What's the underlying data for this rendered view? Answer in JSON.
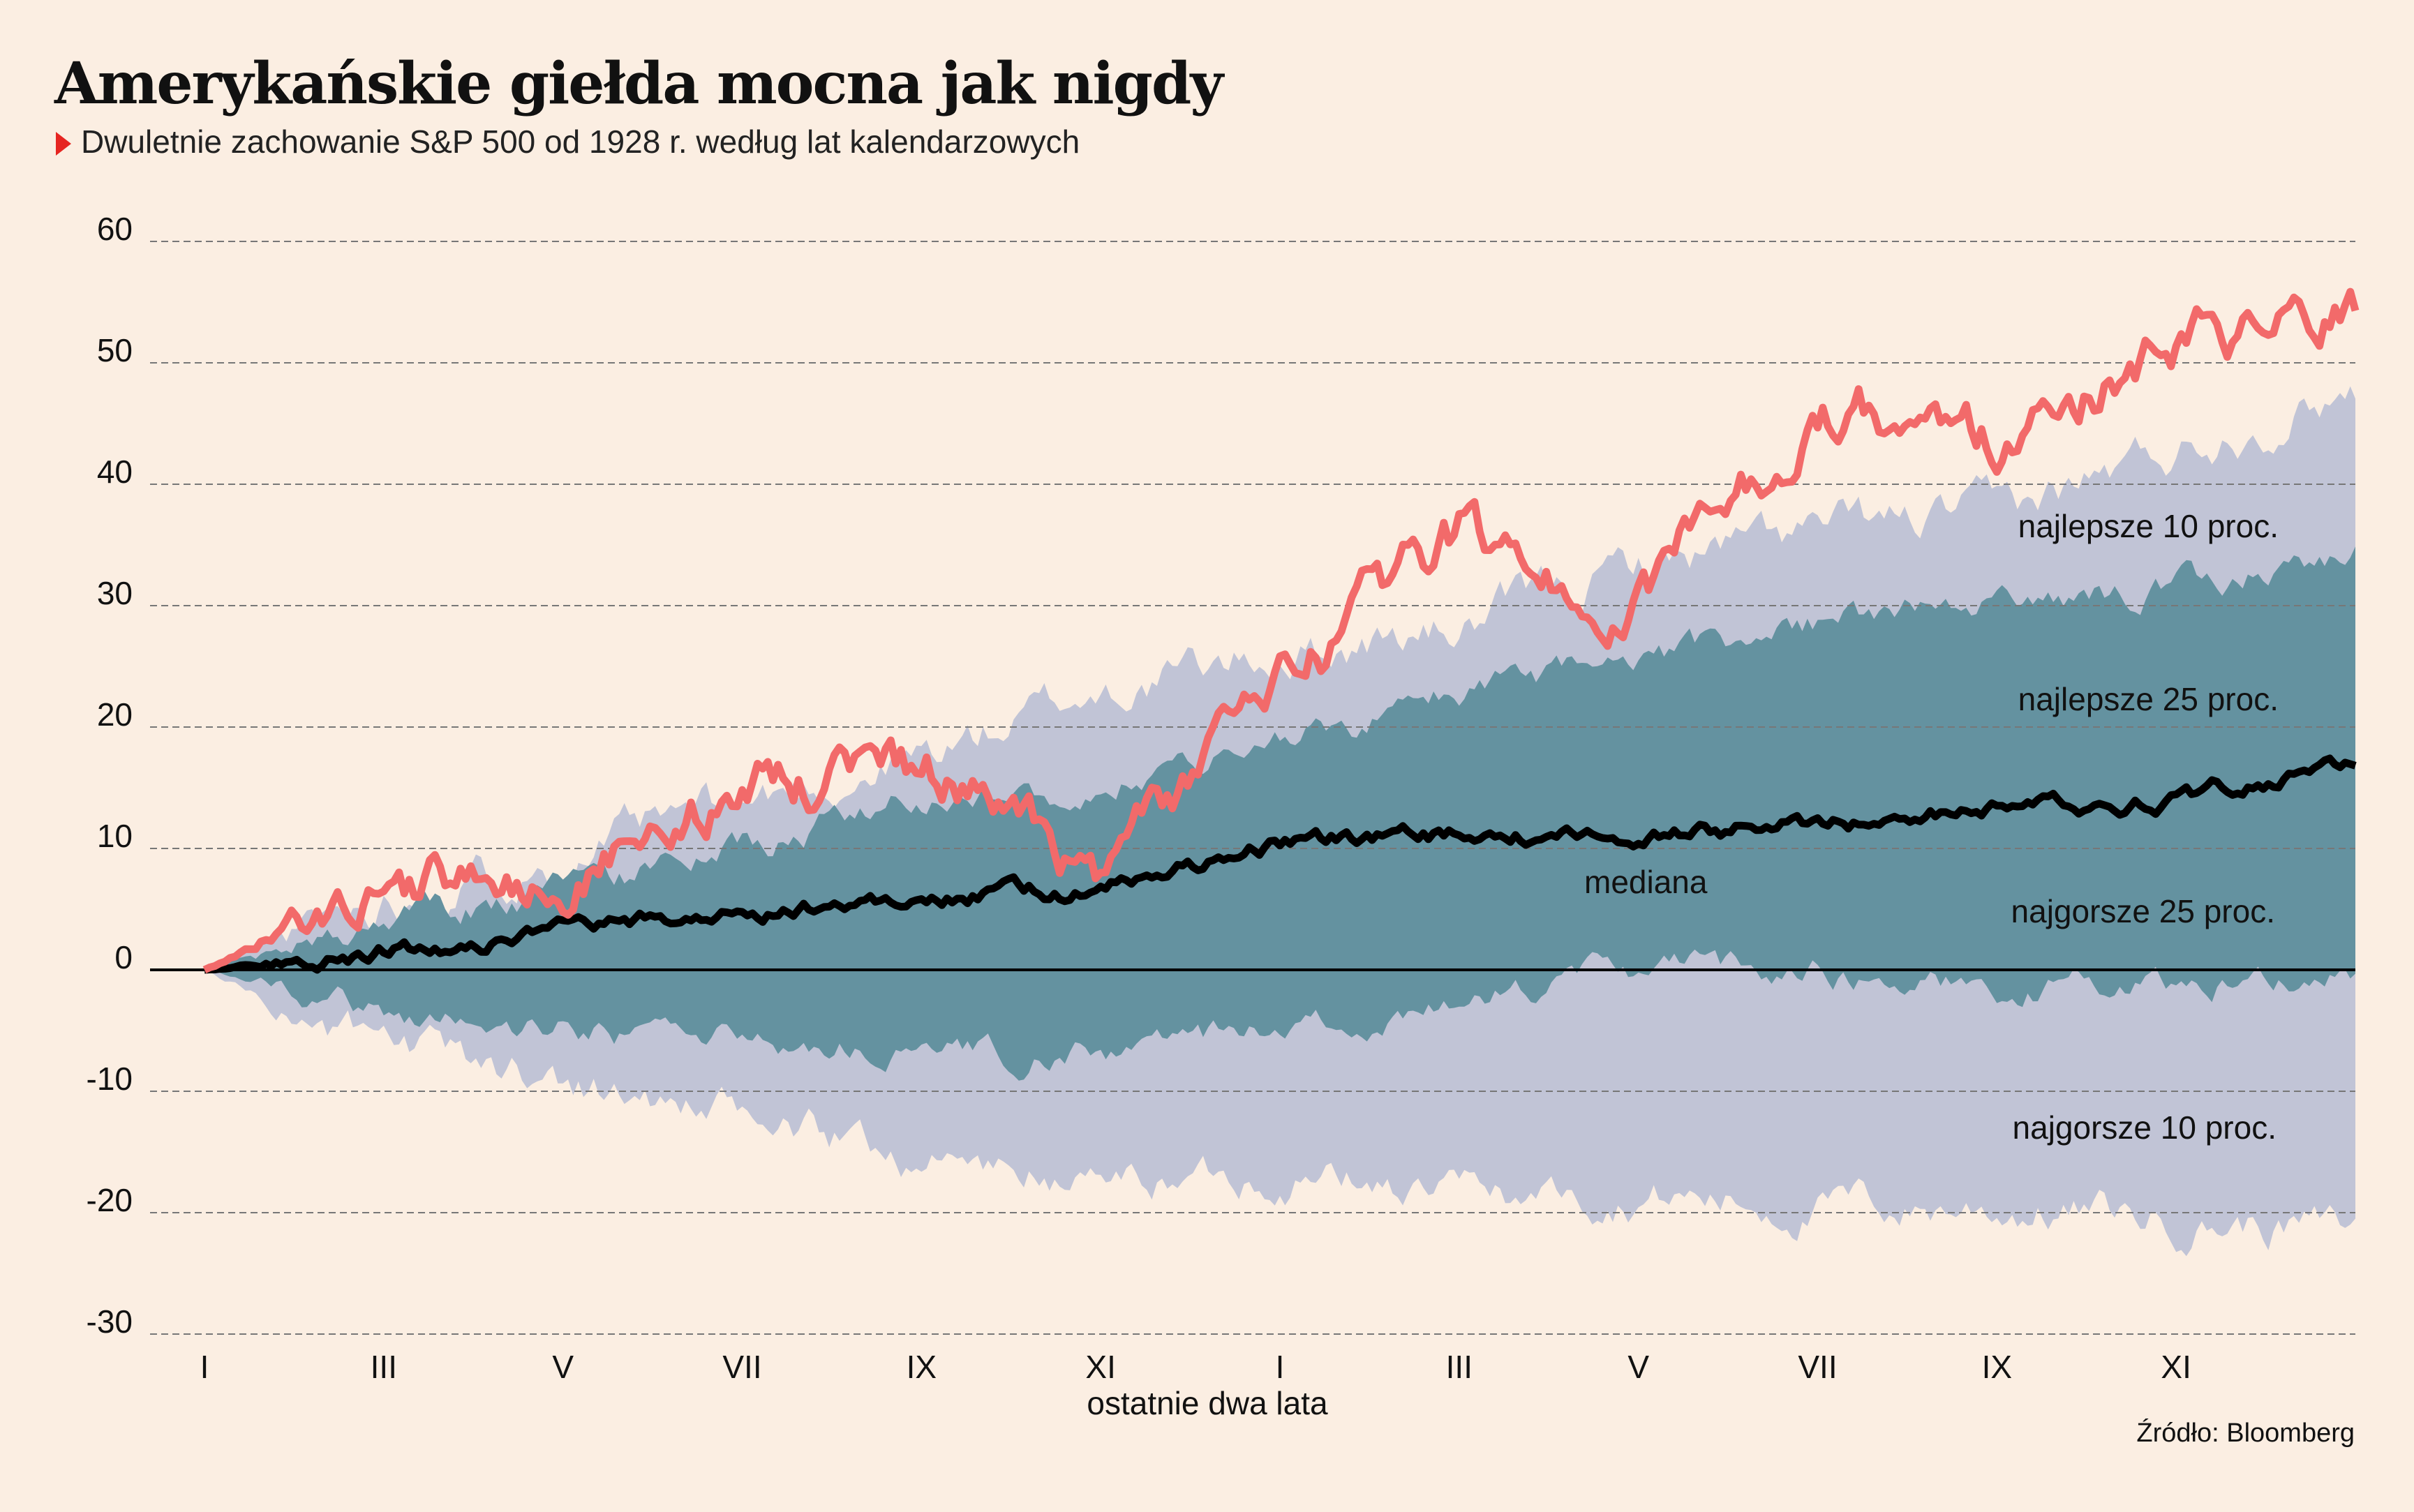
{
  "title": "Amerykańskie giełda mocna jak nigdy",
  "subtitle": "Dwuletnie zachowanie S&P 500 od 1928 r. według lat kalendarzowych",
  "source": "Źródło: Bloomberg",
  "colors": {
    "background": "#fbeee2",
    "band10": "#c1c4d6",
    "band25": "#6492a0",
    "current": "#f26a6a",
    "median": "#000000",
    "marker": "#e62521"
  },
  "chart_data": {
    "type": "area",
    "xlabel": "ostatnie dwa lata",
    "ylim": [
      -30,
      60
    ],
    "yticks": [
      60,
      50,
      40,
      30,
      20,
      10,
      0,
      -10,
      -20,
      -30
    ],
    "ytick_labels": [
      "60",
      "50",
      "40",
      "30",
      "20",
      "10",
      "0",
      "-10",
      "-20",
      "-30"
    ],
    "xticks": [
      "I",
      "III",
      "V",
      "VII",
      "IX",
      "XI",
      "I",
      "III",
      "V",
      "VII",
      "IX",
      "XI"
    ],
    "grid": "horizontal-dashed",
    "x_months": [
      0,
      2,
      4,
      6,
      8,
      10,
      12,
      14,
      16,
      18,
      20,
      22,
      24
    ],
    "series": [
      {
        "name": "najlepsze 10 proc.",
        "role": "upper-10",
        "values": [
          0,
          6,
          9.5,
          13.5,
          17.5,
          23,
          26,
          28,
          33.5,
          36,
          37.5,
          43,
          48
        ]
      },
      {
        "name": "najlepsze 25 proc.",
        "role": "upper-25",
        "values": [
          0,
          4,
          6.5,
          10,
          14.5,
          15,
          19,
          22.5,
          25,
          28.5,
          30,
          31.5,
          34.5
        ]
      },
      {
        "name": "mediana",
        "role": "median",
        "values": [
          0,
          1.6,
          3,
          4.8,
          6,
          6.5,
          10.5,
          11,
          11,
          12,
          13.5,
          14,
          17
        ]
      },
      {
        "name": "najgorsze 25 proc.",
        "role": "lower-25",
        "values": [
          0,
          -3.5,
          -5,
          -5.5,
          -7,
          -7,
          -5,
          -3,
          0,
          0,
          -1.5,
          -1,
          0
        ]
      },
      {
        "name": "najgorsze 10 proc.",
        "role": "lower-10",
        "values": [
          0,
          -7,
          -9,
          -12.5,
          -15.5,
          -17.5,
          -16.5,
          -18.5,
          -18.5,
          -19.5,
          -19.5,
          -20.5,
          -21.5
        ]
      },
      {
        "role": "current",
        "values": [
          0,
          7,
          7.5,
          15,
          16.5,
          7.5,
          23.5,
          35.5,
          30,
          46.5,
          44,
          51,
          53.5
        ]
      }
    ],
    "labels": {
      "best10": "najlepsze 10 proc.",
      "best25": "najlepsze 25 proc.",
      "median": "mediana",
      "worst25": "najgorsze 25 proc.",
      "worst10": "najgorsze 10 proc."
    }
  }
}
